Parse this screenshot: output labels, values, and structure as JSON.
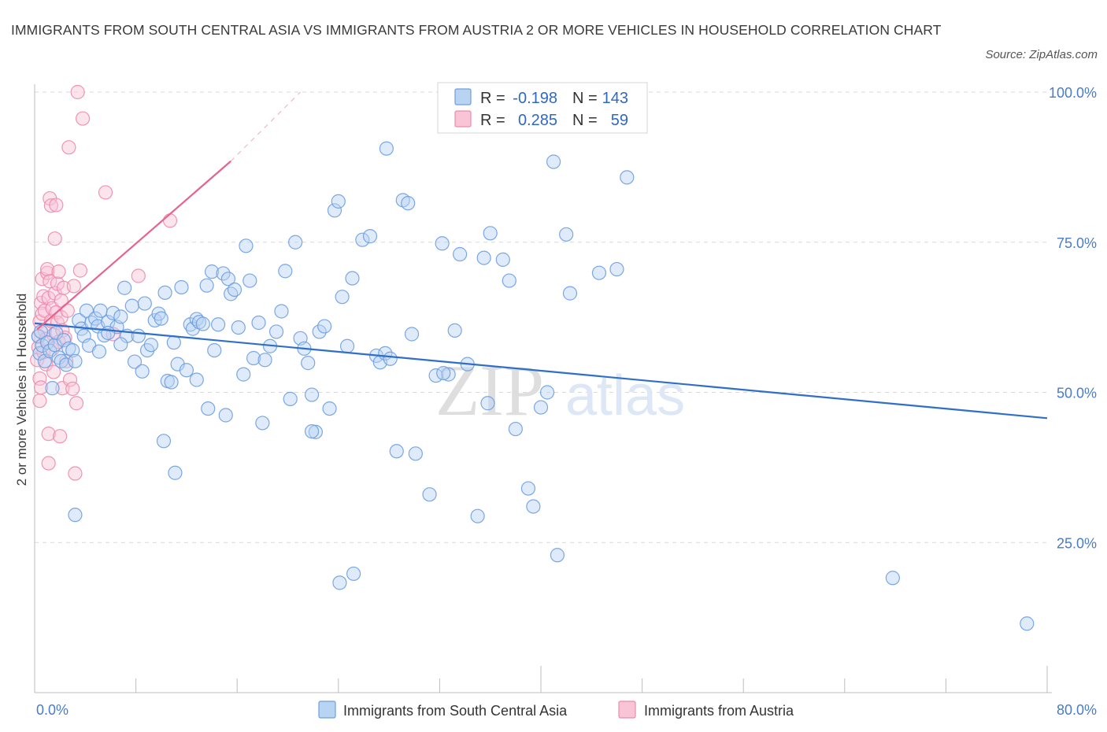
{
  "title": "IMMIGRANTS FROM SOUTH CENTRAL ASIA VS IMMIGRANTS FROM AUSTRIA 2 OR MORE VEHICLES IN HOUSEHOLD CORRELATION CHART",
  "source": "Source: ZipAtlas.com",
  "watermark": {
    "zip": "ZIP",
    "atlas": "atlas"
  },
  "colors": {
    "blue_fill": "#b9d3f3",
    "blue_stroke": "#6d9fe0",
    "blue_line": "#2f6fc9",
    "pink_fill": "#f9c4d6",
    "pink_stroke": "#ec8bab",
    "pink_line": "#e5648e",
    "grid": "#d9d9d9",
    "tick_text": "#4a7cc7"
  },
  "stats": {
    "r_label": "R =",
    "n_label": "N =",
    "blue": {
      "r": "-0.198",
      "n": "143"
    },
    "pink": {
      "r": "0.285",
      "n": "59"
    }
  },
  "chart_data": {
    "type": "scatter",
    "xlabel": "",
    "ylabel": "2 or more Vehicles in Household",
    "xlim": [
      0,
      80
    ],
    "ylim": [
      0,
      100
    ],
    "x_tick_labels": [
      "0.0%",
      "80.0%"
    ],
    "y_tick_labels": [
      "100.0%",
      "75.0%",
      "50.0%",
      "25.0%"
    ],
    "y_ticks": [
      100,
      75,
      50,
      25
    ],
    "grid": true,
    "legend_placement": "bottom-center",
    "series": [
      {
        "name": "Immigrants from South Central Asia",
        "color": "#6d9fe0",
        "trend": {
          "x": [
            0,
            80
          ],
          "y": [
            61.5,
            45.7
          ]
        },
        "points": [
          [
            0.3,
            59.3
          ],
          [
            0.4,
            56.5
          ],
          [
            0.5,
            60.1
          ],
          [
            0.6,
            57.8
          ],
          [
            0.8,
            55.2
          ],
          [
            1.0,
            58.3
          ],
          [
            1.2,
            56.9
          ],
          [
            1.4,
            50.7
          ],
          [
            1.6,
            57.9
          ],
          [
            1.7,
            59.9
          ],
          [
            1.9,
            55.8
          ],
          [
            2.1,
            55.2
          ],
          [
            2.3,
            58.7
          ],
          [
            2.5,
            54.6
          ],
          [
            2.7,
            57.3
          ],
          [
            3.0,
            57.0
          ],
          [
            3.2,
            55.2
          ],
          [
            3.5,
            62.0
          ],
          [
            3.7,
            60.6
          ],
          [
            3.9,
            59.4
          ],
          [
            4.1,
            63.6
          ],
          [
            4.3,
            57.8
          ],
          [
            4.5,
            61.6
          ],
          [
            4.8,
            62.3
          ],
          [
            5.0,
            61.0
          ],
          [
            5.2,
            63.6
          ],
          [
            5.5,
            59.5
          ],
          [
            5.8,
            61.7
          ],
          [
            6.2,
            63.2
          ],
          [
            6.5,
            60.9
          ],
          [
            6.8,
            62.6
          ],
          [
            7.1,
            67.4
          ],
          [
            7.3,
            59.4
          ],
          [
            7.7,
            64.4
          ],
          [
            7.9,
            55.1
          ],
          [
            8.2,
            59.4
          ],
          [
            8.5,
            53.5
          ],
          [
            8.7,
            64.8
          ],
          [
            8.9,
            57.0
          ],
          [
            9.2,
            57.9
          ],
          [
            9.5,
            62.0
          ],
          [
            9.8,
            63.1
          ],
          [
            10.0,
            62.3
          ],
          [
            10.3,
            66.6
          ],
          [
            10.5,
            51.9
          ],
          [
            10.8,
            51.7
          ],
          [
            11.0,
            58.3
          ],
          [
            11.3,
            54.7
          ],
          [
            11.6,
            67.5
          ],
          [
            12.0,
            53.7
          ],
          [
            12.3,
            61.3
          ],
          [
            12.5,
            60.6
          ],
          [
            12.8,
            62.2
          ],
          [
            13.0,
            61.7
          ],
          [
            13.3,
            61.4
          ],
          [
            13.6,
            67.8
          ],
          [
            14.0,
            70.1
          ],
          [
            14.2,
            57.0
          ],
          [
            14.5,
            61.3
          ],
          [
            14.9,
            69.8
          ],
          [
            15.3,
            68.9
          ],
          [
            15.5,
            66.4
          ],
          [
            15.8,
            67.1
          ],
          [
            16.1,
            60.8
          ],
          [
            16.5,
            53.0
          ],
          [
            16.7,
            74.4
          ],
          [
            17.0,
            68.6
          ],
          [
            17.3,
            55.7
          ],
          [
            17.7,
            61.6
          ],
          [
            18.0,
            44.9
          ],
          [
            18.2,
            55.4
          ],
          [
            18.6,
            57.7
          ],
          [
            19.1,
            60.1
          ],
          [
            19.5,
            63.5
          ],
          [
            19.8,
            70.2
          ],
          [
            20.2,
            48.9
          ],
          [
            20.6,
            75.0
          ],
          [
            21.0,
            59.0
          ],
          [
            21.3,
            57.3
          ],
          [
            21.6,
            54.9
          ],
          [
            21.9,
            49.6
          ],
          [
            22.2,
            43.4
          ],
          [
            22.5,
            60.1
          ],
          [
            22.9,
            61.0
          ],
          [
            23.3,
            47.3
          ],
          [
            23.7,
            80.3
          ],
          [
            24.0,
            81.8
          ],
          [
            24.3,
            65.9
          ],
          [
            24.7,
            57.7
          ],
          [
            25.1,
            69.0
          ],
          [
            25.9,
            75.4
          ],
          [
            26.5,
            76.0
          ],
          [
            27.0,
            56.1
          ],
          [
            27.3,
            55.0
          ],
          [
            27.7,
            56.5
          ],
          [
            28.1,
            55.6
          ],
          [
            28.6,
            40.2
          ],
          [
            29.1,
            82.0
          ],
          [
            29.5,
            81.5
          ],
          [
            29.8,
            59.7
          ],
          [
            30.1,
            39.8
          ],
          [
            31.2,
            33.0
          ],
          [
            31.7,
            52.8
          ],
          [
            32.2,
            74.8
          ],
          [
            32.7,
            53.0
          ],
          [
            33.2,
            60.3
          ],
          [
            33.6,
            73.0
          ],
          [
            34.2,
            54.7
          ],
          [
            35.0,
            29.4
          ],
          [
            35.5,
            72.4
          ],
          [
            36.0,
            76.5
          ],
          [
            37.0,
            72.1
          ],
          [
            37.5,
            68.6
          ],
          [
            38.0,
            43.9
          ],
          [
            39.0,
            34.0
          ],
          [
            39.4,
            31.0
          ],
          [
            40.0,
            47.5
          ],
          [
            40.5,
            50.0
          ],
          [
            41.0,
            88.4
          ],
          [
            41.3,
            22.9
          ],
          [
            42.0,
            76.3
          ],
          [
            42.3,
            66.5
          ],
          [
            44.6,
            69.9
          ],
          [
            46.0,
            70.5
          ],
          [
            46.8,
            85.8
          ],
          [
            67.8,
            19.1
          ],
          [
            78.4,
            11.5
          ],
          [
            11.1,
            36.6
          ],
          [
            10.2,
            41.9
          ],
          [
            12.8,
            52.1
          ],
          [
            15.1,
            46.2
          ],
          [
            21.9,
            43.5
          ],
          [
            24.1,
            18.3
          ],
          [
            25.2,
            19.8
          ],
          [
            32.3,
            53.2
          ],
          [
            35.8,
            48.2
          ],
          [
            27.8,
            90.6
          ],
          [
            5.1,
            56.8
          ],
          [
            3.2,
            29.6
          ],
          [
            5.8,
            59.9
          ],
          [
            6.8,
            58.0
          ],
          [
            13.7,
            47.3
          ]
        ]
      },
      {
        "name": "Immigrants from Austria",
        "color": "#ec8bab",
        "trend": {
          "x": [
            0.2,
            15.5
          ],
          "y": [
            60.5,
            88.5
          ]
        },
        "trend_extension": {
          "x": [
            15.5,
            21.0
          ],
          "y": [
            88.5,
            100.0
          ]
        },
        "points": [
          [
            0.2,
            55.4
          ],
          [
            0.3,
            57.5
          ],
          [
            0.3,
            59.4
          ],
          [
            0.4,
            61.8
          ],
          [
            0.4,
            52.3
          ],
          [
            0.4,
            48.6
          ],
          [
            0.5,
            50.8
          ],
          [
            0.5,
            64.9
          ],
          [
            0.6,
            63.1
          ],
          [
            0.6,
            68.9
          ],
          [
            0.7,
            66.0
          ],
          [
            0.7,
            56.7
          ],
          [
            0.8,
            60.3
          ],
          [
            0.8,
            63.6
          ],
          [
            0.9,
            54.7
          ],
          [
            0.9,
            58.9
          ],
          [
            1.0,
            69.9
          ],
          [
            1.0,
            70.5
          ],
          [
            1.1,
            65.7
          ],
          [
            1.1,
            43.1
          ],
          [
            1.1,
            38.2
          ],
          [
            1.2,
            68.5
          ],
          [
            1.2,
            82.3
          ],
          [
            1.3,
            81.1
          ],
          [
            1.3,
            61.9
          ],
          [
            1.4,
            57.2
          ],
          [
            1.4,
            64.0
          ],
          [
            1.5,
            59.6
          ],
          [
            1.5,
            53.4
          ],
          [
            1.6,
            66.5
          ],
          [
            1.6,
            75.6
          ],
          [
            1.7,
            81.2
          ],
          [
            1.7,
            63.3
          ],
          [
            1.8,
            61.6
          ],
          [
            1.8,
            68.1
          ],
          [
            1.9,
            58.4
          ],
          [
            1.9,
            70.1
          ],
          [
            2.0,
            42.7
          ],
          [
            2.1,
            62.5
          ],
          [
            2.1,
            65.3
          ],
          [
            2.2,
            60.3
          ],
          [
            2.2,
            50.7
          ],
          [
            2.3,
            67.4
          ],
          [
            2.4,
            59.1
          ],
          [
            2.5,
            55.2
          ],
          [
            2.6,
            63.6
          ],
          [
            2.7,
            90.8
          ],
          [
            2.8,
            52.1
          ],
          [
            3.0,
            50.6
          ],
          [
            3.1,
            67.7
          ],
          [
            3.2,
            36.5
          ],
          [
            3.3,
            48.2
          ],
          [
            3.4,
            100.0
          ],
          [
            3.6,
            70.3
          ],
          [
            3.8,
            95.6
          ],
          [
            5.6,
            83.3
          ],
          [
            6.2,
            59.7
          ],
          [
            8.2,
            69.4
          ],
          [
            10.7,
            78.6
          ]
        ]
      }
    ]
  }
}
